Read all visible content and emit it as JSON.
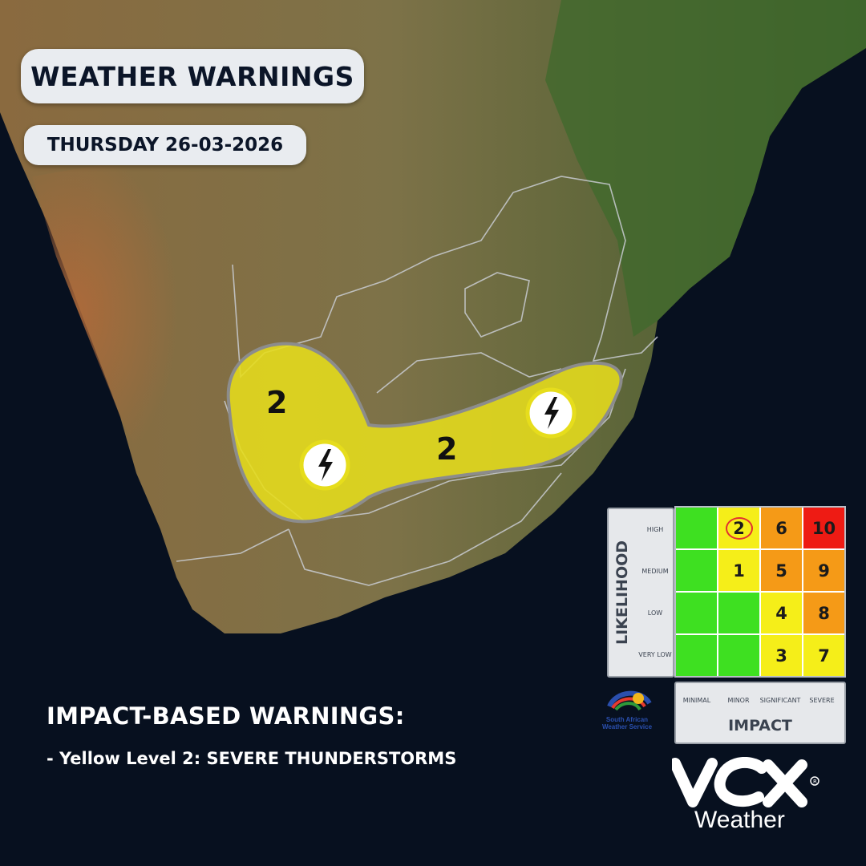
{
  "header": {
    "title": "WEATHER WARNINGS",
    "date": "THURSDAY 26-03-2026"
  },
  "map": {
    "warning_level_labels": [
      "2",
      "2"
    ],
    "hazard_icons": [
      "lightning-icon",
      "lightning-icon"
    ],
    "warning_color": "#e6dd1c",
    "ocean_color": "#07101f"
  },
  "warnings": {
    "heading": "IMPACT-BASED WARNINGS:",
    "lines": [
      "- Yellow Level 2: SEVERE THUNDERSTORMS"
    ]
  },
  "matrix": {
    "likelihood_label": "LIKELIHOOD",
    "impact_label": "IMPACT",
    "rows": [
      "HIGH",
      "MEDIUM",
      "LOW",
      "VERY LOW"
    ],
    "columns": [
      "MINIMAL",
      "MINOR",
      "SIGNIFICANT",
      "SEVERE"
    ],
    "cells": [
      [
        {
          "v": "",
          "c": "#3ee021"
        },
        {
          "v": "2",
          "c": "#f5ee19",
          "circled": true
        },
        {
          "v": "6",
          "c": "#f59a17"
        },
        {
          "v": "10",
          "c": "#ee1b14"
        }
      ],
      [
        {
          "v": "",
          "c": "#3ee021"
        },
        {
          "v": "1",
          "c": "#f5ee19"
        },
        {
          "v": "5",
          "c": "#f59a17"
        },
        {
          "v": "9",
          "c": "#f59a17"
        }
      ],
      [
        {
          "v": "",
          "c": "#3ee021"
        },
        {
          "v": "",
          "c": "#3ee021"
        },
        {
          "v": "4",
          "c": "#f5ee19"
        },
        {
          "v": "8",
          "c": "#f59a17"
        }
      ],
      [
        {
          "v": "",
          "c": "#3ee021"
        },
        {
          "v": "",
          "c": "#3ee021"
        },
        {
          "v": "3",
          "c": "#f5ee19"
        },
        {
          "v": "7",
          "c": "#f5ee19"
        }
      ]
    ]
  },
  "logos": {
    "saws_line1": "South African",
    "saws_line2": "Weather Service",
    "vox_word": "Weather"
  }
}
